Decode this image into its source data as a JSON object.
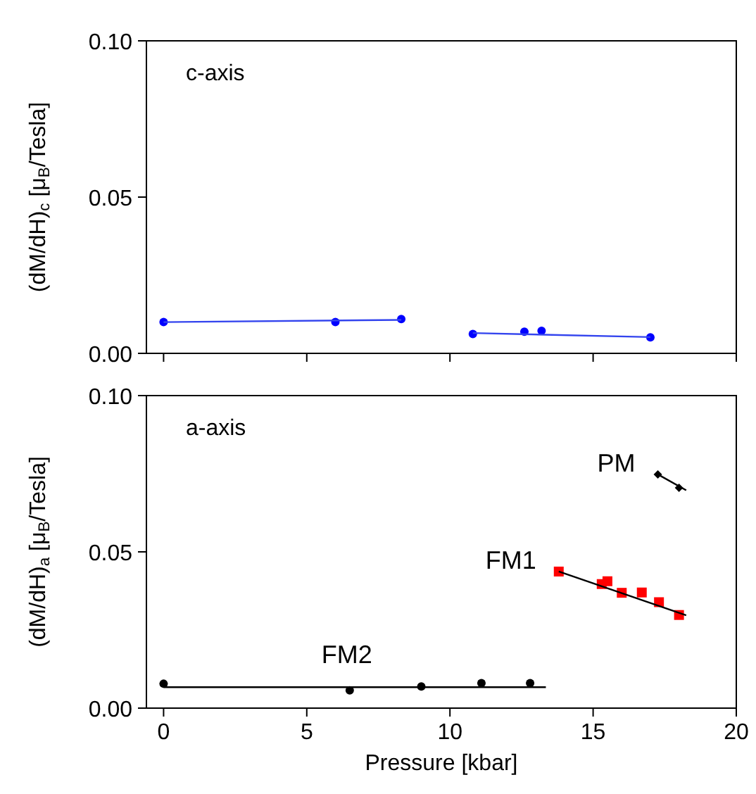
{
  "chart_data": [
    {
      "type": "scatter",
      "ylabel": "(dM/dH)$_{c}$ [μ$_{B}$/Tesla]",
      "xlim": [
        -0.6,
        20
      ],
      "ylim": [
        0,
        0.1
      ],
      "xticks": [
        0,
        5,
        10,
        15,
        20
      ],
      "yticks": [
        {
          "value": 0,
          "label": "0.00"
        },
        {
          "value": 0.05,
          "label": "0.05"
        },
        {
          "value": 0.1,
          "label": "0.10"
        }
      ],
      "tick_labels": "y",
      "annotations": [
        "c-axis"
      ],
      "series": [
        {
          "color": "#0000ff",
          "marker": "circle",
          "x": [
            0,
            6.0,
            8.3,
            10.8,
            12.6,
            13.2,
            17.0
          ],
          "values": [
            0.01,
            0.01,
            0.011,
            0.0062,
            0.0069,
            0.0072,
            0.0051
          ]
        },
        {
          "type": "line",
          "color": "#3344ee",
          "marker": "none",
          "x": [
            0,
            8.3
          ],
          "values": [
            0.01,
            0.0107
          ]
        },
        {
          "type": "line",
          "color": "#3344ee",
          "marker": "none",
          "x": [
            10.8,
            17.0
          ],
          "values": [
            0.0065,
            0.0052
          ]
        }
      ]
    },
    {
      "type": "scatter",
      "xlabel": "Pressure [kbar]",
      "ylabel": "(dM/dH)$_{a}$ [μ$_{B}$/Tesla]",
      "xlim": [
        -0.6,
        20
      ],
      "ylim": [
        0,
        0.1
      ],
      "xticks": [
        0,
        5,
        10,
        15,
        20
      ],
      "yticks": [
        {
          "value": 0,
          "label": "0.00"
        },
        {
          "value": 0.05,
          "label": "0.05"
        },
        {
          "value": 0.1,
          "label": "0.10"
        }
      ],
      "annotations": [
        "a-axis"
      ],
      "series": [
        {
          "name": "FM2",
          "color": "#000000",
          "marker": "circle",
          "x": [
            0,
            6.5,
            9.0,
            11.1,
            12.8
          ],
          "values": [
            0.0078,
            0.0057,
            0.0069,
            0.008,
            0.008
          ]
        },
        {
          "type": "line",
          "color": "#000000",
          "marker": "none",
          "x": [
            0,
            13.35
          ],
          "values": [
            0.0067,
            0.0067
          ]
        },
        {
          "name": "FM1",
          "color": "#ff0000",
          "marker": "square",
          "x": [
            13.8,
            15.3,
            15.5,
            16.0,
            16.7,
            17.3,
            18.0
          ],
          "values": [
            0.0437,
            0.0397,
            0.0406,
            0.0369,
            0.037,
            0.0339,
            0.0298
          ]
        },
        {
          "type": "line",
          "color": "#000000",
          "marker": "none",
          "x": [
            13.8,
            18.25
          ],
          "values": [
            0.0437,
            0.0297
          ]
        },
        {
          "name": "PM",
          "color": "#000000",
          "marker": "diamond",
          "x": [
            17.26,
            18.0
          ],
          "values": [
            0.0748,
            0.0705
          ]
        },
        {
          "type": "line",
          "color": "#000000",
          "marker": "none",
          "x": [
            17.26,
            18.25
          ],
          "values": [
            0.0748,
            0.0697
          ]
        }
      ]
    }
  ]
}
